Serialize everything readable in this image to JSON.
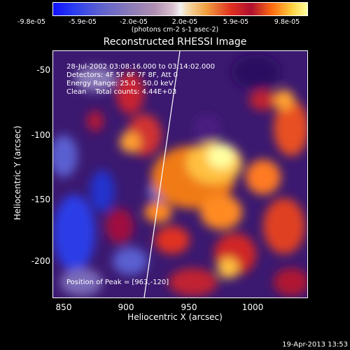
{
  "colorbar": {
    "ticks": [
      "-9.8e-05",
      "-5.9e-05",
      "-2.0e-05",
      "2.0e-05",
      "5.9e-05",
      "9.8e-05"
    ],
    "units": "(photons cm-2 s-1 asec-2)"
  },
  "title": "Reconstructed RHESSI Image",
  "info": {
    "time_range": "28-Jul-2002 03:08:16.000 to 03:14:02.000",
    "detectors": "Detectors: 4F 5F 6F 7F 8F, Att 0",
    "energy": "Energy Range: 25.0 - 50.0 keV",
    "clean": "Clean    Total counts: 4.44E+03",
    "peak": "Position of Peak = [963,-120]"
  },
  "axes": {
    "xlabel": "Heliocentric X (arcsec)",
    "ylabel": "Heliocentric Y (arcsec)",
    "xticks": [
      "850",
      "900",
      "950",
      "1000"
    ],
    "yticks": [
      "-50",
      "-100",
      "-150",
      "-200"
    ]
  },
  "date": "19-Apr-2013 13:53"
}
